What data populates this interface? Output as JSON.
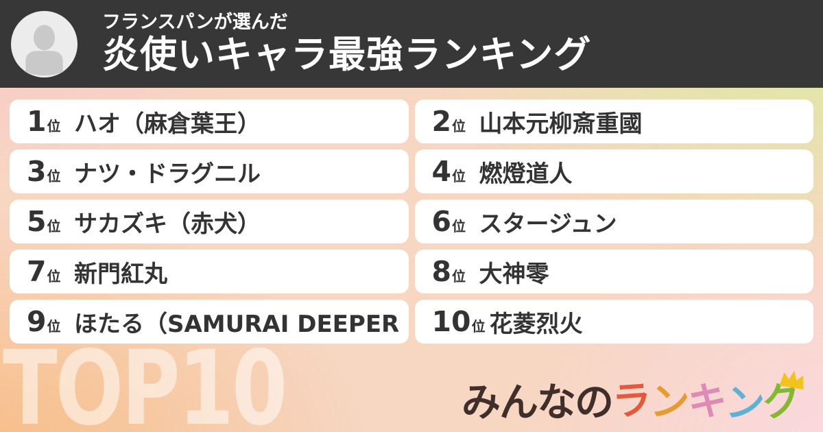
{
  "header": {
    "subtitle": "フランスパンが選んだ",
    "title": "炎使いキャラ最強ランキング",
    "avatar_icon": "person-icon"
  },
  "ranking": {
    "rank_suffix": "位",
    "items": [
      {
        "rank": "1",
        "name": "ハオ（麻倉葉王）"
      },
      {
        "rank": "2",
        "name": "山本元柳斎重國"
      },
      {
        "rank": "3",
        "name": "ナツ・ドラグニル"
      },
      {
        "rank": "4",
        "name": "燃燈道人"
      },
      {
        "rank": "5",
        "name": "サカズキ（赤犬）"
      },
      {
        "rank": "6",
        "name": "スタージュン"
      },
      {
        "rank": "7",
        "name": "新門紅丸"
      },
      {
        "rank": "8",
        "name": "大神零"
      },
      {
        "rank": "9",
        "name": "ほたる（SAMURAI DEEPER ..."
      },
      {
        "rank": "10",
        "name": "花菱烈火"
      }
    ]
  },
  "footer": {
    "badge": "TOP10",
    "logo": {
      "name": "みんなのランキング",
      "chars": [
        {
          "ch": "み",
          "color": "#3f2e29"
        },
        {
          "ch": "ん",
          "color": "#3f2e29"
        },
        {
          "ch": "な",
          "color": "#3f2e29"
        },
        {
          "ch": "の",
          "color": "#3f2e29"
        },
        {
          "ch": "ラ",
          "color": "#e4593c"
        },
        {
          "ch": "ン",
          "color": "#e69b31"
        },
        {
          "ch": "キ",
          "color": "#dd8ab6"
        },
        {
          "ch": "ン",
          "color": "#5fb0d2"
        },
        {
          "ch": "グ",
          "color": "#82b832"
        }
      ],
      "crown_color": "#f2c31d"
    }
  },
  "colors": {
    "header_bg": "#373737",
    "card_bg": "#ffffff",
    "text_dark": "#333333",
    "bg_top_left": "#f8c7ca",
    "bg_top_right": "#d8ed9e",
    "bg_bottom_left": "#f7ba80",
    "bg_bottom_right": "#fad9e1",
    "top10_text": "rgba(255,255,255,0.52)"
  }
}
